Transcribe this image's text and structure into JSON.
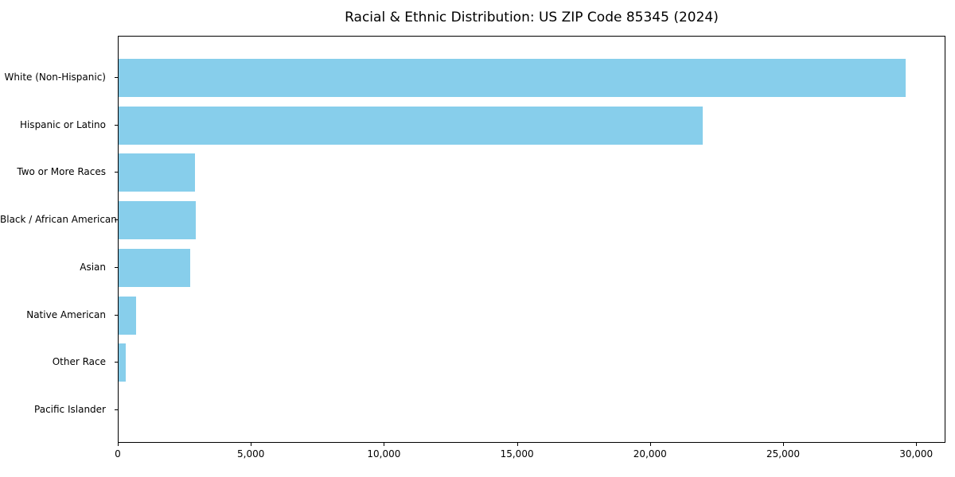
{
  "chart_data": {
    "type": "bar",
    "orientation": "horizontal",
    "title": "Racial & Ethnic Distribution: US ZIP Code 85345 (2024)",
    "categories": [
      "White (Non-Hispanic)",
      "Hispanic or Latino",
      "Two or More Races",
      "Black / African American",
      "Asian",
      "Native American",
      "Other Race",
      "Pacific Islander"
    ],
    "values": [
      29580,
      21950,
      2880,
      2900,
      2690,
      670,
      270,
      0
    ],
    "xlabel": "",
    "ylabel": "",
    "xlim": [
      0,
      31100
    ],
    "xticks": [
      0,
      5000,
      10000,
      15000,
      20000,
      25000,
      30000
    ],
    "xtick_labels": [
      "0",
      "5,000",
      "10,000",
      "15,000",
      "20,000",
      "25,000",
      "30,000"
    ],
    "bar_color": "#87CEEB",
    "axis_color": "#000000",
    "grid": false,
    "legend": "none"
  }
}
